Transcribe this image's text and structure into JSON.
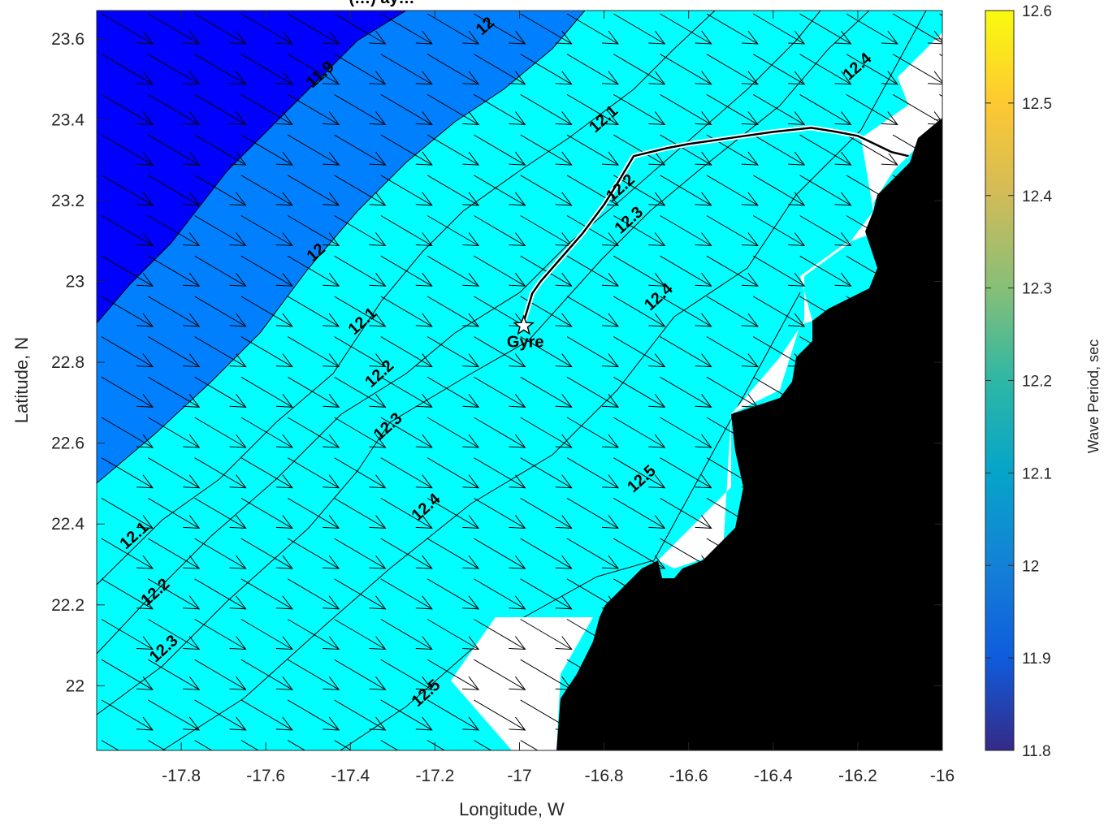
{
  "chart_data": {
    "type": "heatmap",
    "title_partial": "(…) ay…",
    "xlabel": "Longitude, W",
    "ylabel": "Latitude, N",
    "xlim": [
      -18.0,
      -16.0
    ],
    "ylim": [
      21.84,
      23.67
    ],
    "x_ticks": [
      -17.8,
      -17.6,
      -17.4,
      -17.2,
      -17.0,
      -16.8,
      -16.6,
      -16.4,
      -16.2,
      -16.0
    ],
    "y_ticks": [
      22.0,
      22.2,
      22.4,
      22.6,
      22.8,
      23.0,
      23.2,
      23.4,
      23.6
    ],
    "x_tick_labels": [
      "-17.8",
      "-17.6",
      "-17.4",
      "-17.2",
      "-17",
      "-16.8",
      "-16.6",
      "-16.4",
      "-16.2",
      "-16"
    ],
    "y_tick_labels": [
      "22",
      "22.2",
      "22.4",
      "22.6",
      "22.8",
      "23",
      "23.2",
      "23.4",
      "23.6"
    ],
    "colorbar": {
      "label": "Wave Period, sec",
      "range": [
        11.8,
        12.6
      ],
      "ticks": [
        "11.8",
        "11.9",
        "12",
        "12.1",
        "12.2",
        "12.3",
        "12.4",
        "12.5",
        "12.6"
      ],
      "colormap": "parula"
    },
    "contour_levels": [
      11.9,
      12.0,
      12.1,
      12.2,
      12.3,
      12.4,
      12.5
    ],
    "band_colors": [
      {
        "range": "< 11.9",
        "color": "#0000ff"
      },
      {
        "range": "11.9-12.0",
        "color": "#0080ff"
      },
      {
        "range": "12.0-12.1",
        "color": "#00ffff"
      },
      {
        "range": "12.1-12.2",
        "color": "#80ff80"
      },
      {
        "range": "12.2-12.3",
        "color": "#ffff00"
      },
      {
        "range": "12.3-12.4",
        "color": "#ff8000"
      },
      {
        "range": "12.4-12.5",
        "color": "#ff0000"
      },
      {
        "range": "> 12.5",
        "color": "#800000"
      }
    ],
    "contour_labels": [
      {
        "text": "11.9",
        "lon": -17.47,
        "lat": 23.51
      },
      {
        "text": "12",
        "lon": -17.08,
        "lat": 23.63
      },
      {
        "text": "12.1",
        "lon": -16.8,
        "lat": 23.4
      },
      {
        "text": "12.2",
        "lon": -16.76,
        "lat": 23.23
      },
      {
        "text": "12.3",
        "lon": -16.74,
        "lat": 23.15
      },
      {
        "text": "12.4",
        "lon": -16.2,
        "lat": 23.53
      },
      {
        "text": "12",
        "lon": -17.48,
        "lat": 23.07
      },
      {
        "text": "12.1",
        "lon": -17.37,
        "lat": 22.9
      },
      {
        "text": "12.2",
        "lon": -17.33,
        "lat": 22.77
      },
      {
        "text": "12.3",
        "lon": -17.31,
        "lat": 22.64
      },
      {
        "text": "12.4",
        "lon": -16.67,
        "lat": 22.96
      },
      {
        "text": "12.4",
        "lon": -17.22,
        "lat": 22.44
      },
      {
        "text": "12.5",
        "lon": -16.71,
        "lat": 22.51
      },
      {
        "text": "12.1",
        "lon": -17.91,
        "lat": 22.37
      },
      {
        "text": "12.2",
        "lon": -17.86,
        "lat": 22.23
      },
      {
        "text": "12.3",
        "lon": -17.84,
        "lat": 22.09
      },
      {
        "text": "12.5",
        "lon": -17.22,
        "lat": 21.98
      }
    ],
    "wave_direction": "arrows pointing toward the east-southeast",
    "marker": {
      "label": "Gyre",
      "lon": -16.99,
      "lat": 22.89,
      "symbol": "star"
    },
    "track": {
      "lon": [
        -16.99,
        -16.97,
        -16.95,
        -16.9,
        -16.85,
        -16.8,
        -16.77,
        -16.73,
        -16.65,
        -16.6,
        -16.5,
        -16.4,
        -16.31,
        -16.25,
        -16.2,
        -16.18,
        -16.16,
        -16.12,
        -16.08
      ],
      "lat": [
        22.9,
        22.97,
        23.0,
        23.06,
        23.12,
        23.19,
        23.24,
        23.31,
        23.33,
        23.34,
        23.355,
        23.37,
        23.38,
        23.37,
        23.36,
        23.35,
        23.34,
        23.32,
        23.31
      ]
    },
    "land_color": "#000000",
    "grid": false,
    "legend": "none"
  }
}
